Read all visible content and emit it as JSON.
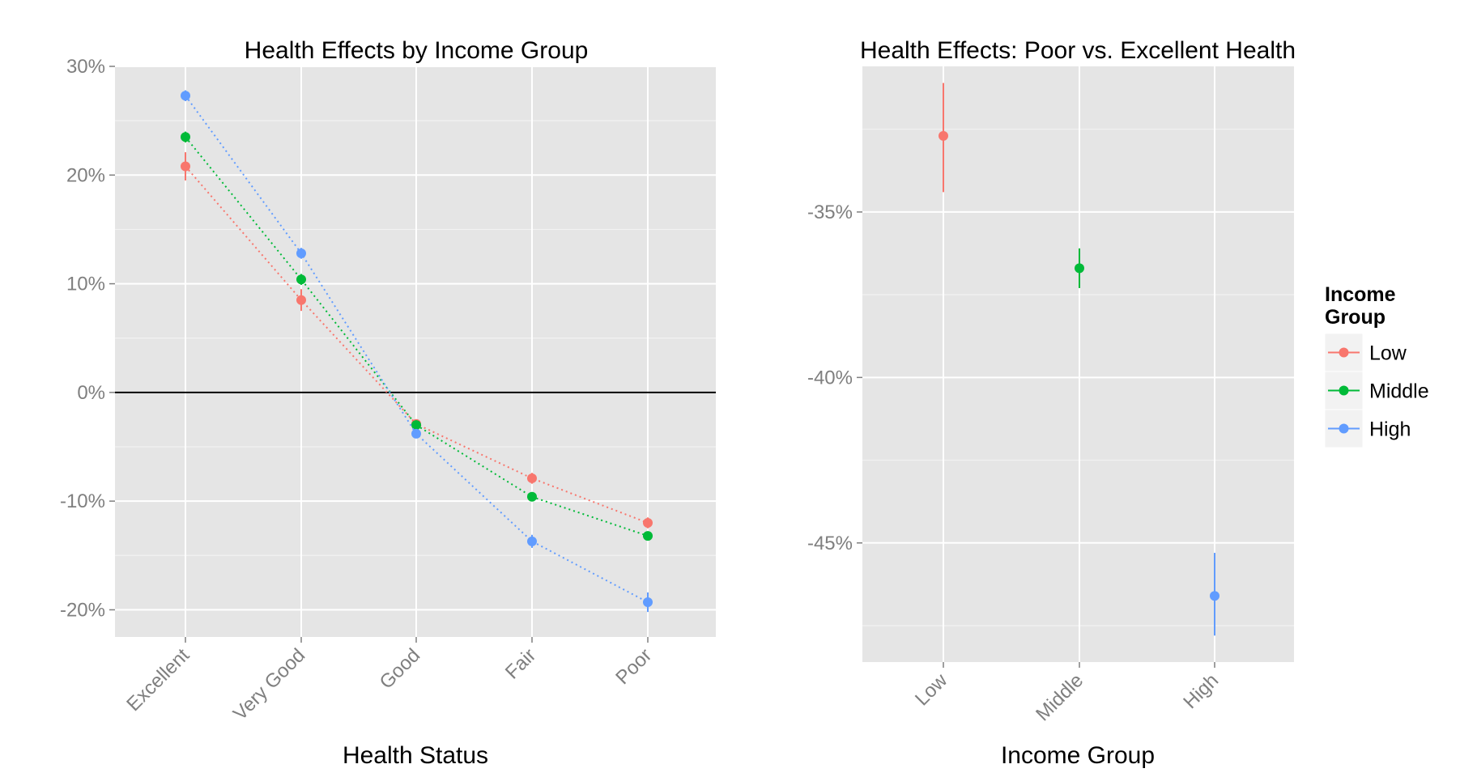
{
  "chart_data": [
    {
      "type": "line",
      "title": "Health Effects by Income Group",
      "xlabel": "Health Status",
      "ylabel": "",
      "categories": [
        "Excellent",
        "Very Good",
        "Good",
        "Fair",
        "Poor"
      ],
      "y_ticks": [
        "-20%",
        "-10%",
        "0%",
        "10%",
        "20%",
        "30%"
      ],
      "ylim": [
        -22.5,
        30
      ],
      "reference_line": 0,
      "grid": true,
      "series": [
        {
          "name": "Low",
          "color": "#F8766D",
          "values": [
            20.8,
            8.5,
            -2.9,
            -7.9,
            -12.0
          ],
          "ci_low": [
            19.5,
            7.5,
            -3.3,
            -8.4,
            -12.5
          ],
          "ci_high": [
            22.1,
            9.5,
            -2.5,
            -7.4,
            -11.5
          ]
        },
        {
          "name": "Middle",
          "color": "#00BA38",
          "values": [
            23.5,
            10.4,
            -3.0,
            -9.6,
            -13.2
          ],
          "ci_low": [
            23.0,
            9.9,
            -3.3,
            -10.0,
            -13.6
          ],
          "ci_high": [
            24.0,
            10.9,
            -2.7,
            -9.2,
            -12.8
          ]
        },
        {
          "name": "High",
          "color": "#619CFF",
          "values": [
            27.3,
            12.8,
            -3.8,
            -13.7,
            -19.3
          ],
          "ci_low": [
            26.8,
            12.3,
            -4.2,
            -14.3,
            -20.2
          ],
          "ci_high": [
            27.8,
            13.3,
            -3.4,
            -13.1,
            -18.4
          ]
        }
      ]
    },
    {
      "type": "scatter",
      "title": "Health Effects: Poor vs. Excellent Health",
      "xlabel": "Income Group",
      "ylabel": "",
      "categories": [
        "Low",
        "Middle",
        "High"
      ],
      "y_ticks": [
        "-35%",
        "-40%",
        "-45%"
      ],
      "ylim": [
        -48.6,
        -30.6
      ],
      "grid": true,
      "series": [
        {
          "name": "Low",
          "color": "#F8766D",
          "values": [
            -32.7
          ],
          "ci_low": [
            -34.4
          ],
          "ci_high": [
            -31.1
          ]
        },
        {
          "name": "Middle",
          "color": "#00BA38",
          "values": [
            -36.7
          ],
          "ci_low": [
            -37.3
          ],
          "ci_high": [
            -36.1
          ]
        },
        {
          "name": "High",
          "color": "#619CFF",
          "values": [
            -46.6
          ],
          "ci_low": [
            -47.8
          ],
          "ci_high": [
            -45.3
          ]
        }
      ]
    }
  ],
  "legend": {
    "title_line1": "Income",
    "title_line2": "Group",
    "position": "right",
    "items": [
      {
        "label": "Low",
        "color": "#F8766D"
      },
      {
        "label": "Middle",
        "color": "#00BA38"
      },
      {
        "label": "High",
        "color": "#619CFF"
      }
    ]
  }
}
